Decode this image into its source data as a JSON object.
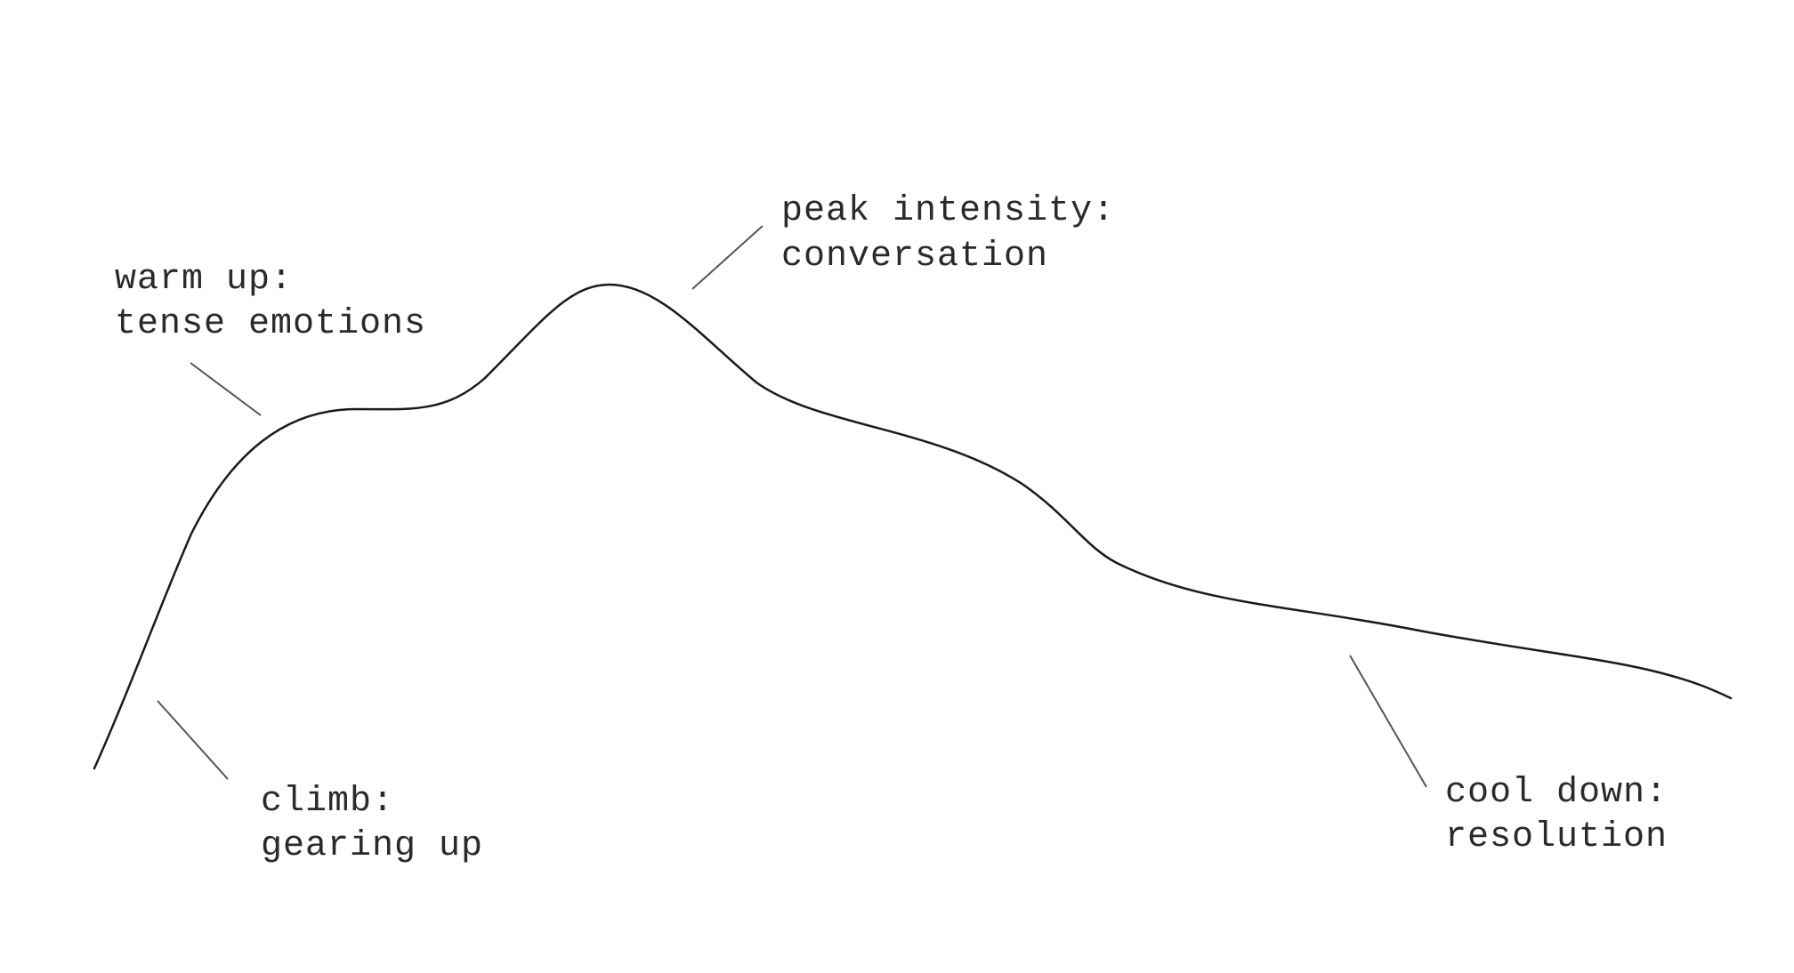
{
  "diagram": {
    "stages": [
      {
        "id": "climb",
        "title": "climb:",
        "subtitle": "gearing up"
      },
      {
        "id": "warm-up",
        "title": "warm up:",
        "subtitle": "tense emotions"
      },
      {
        "id": "peak",
        "title": "peak intensity:",
        "subtitle": "conversation"
      },
      {
        "id": "cool-down",
        "title": "cool down:",
        "subtitle": "resolution"
      }
    ],
    "colors": {
      "curve": "#1a1a1a",
      "leader": "#555555",
      "text": "#2a2a2a",
      "background": "#ffffff"
    }
  }
}
